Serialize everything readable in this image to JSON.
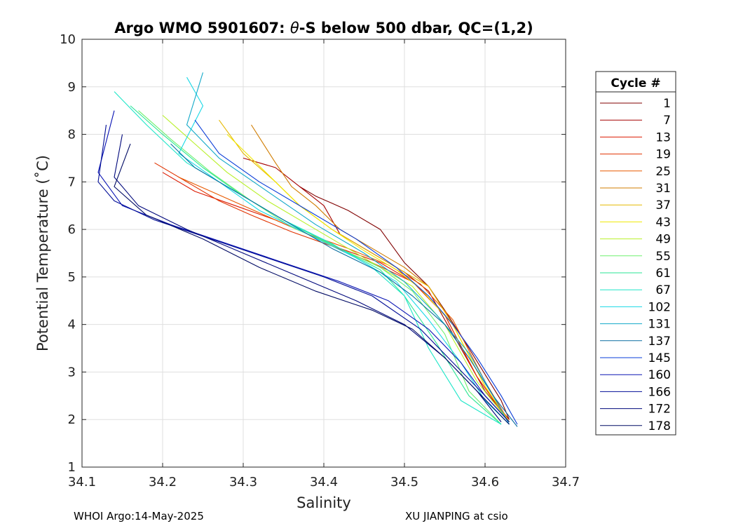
{
  "chart_data": {
    "type": "line",
    "title_parts": [
      "Argo WMO 5901607: ",
      "θ",
      "-S below 500 dbar,  QC=(1,2)"
    ],
    "xlabel": "Salinity",
    "ylabel": "Potential Temperature (˚C)",
    "xlim": [
      34.1,
      34.7
    ],
    "ylim": [
      1,
      10
    ],
    "xticks": [
      "34.1",
      "34.2",
      "34.3",
      "34.4",
      "34.5",
      "34.6",
      "34.7"
    ],
    "yticks": [
      "1",
      "2",
      "3",
      "4",
      "5",
      "6",
      "7",
      "8",
      "9",
      "10"
    ],
    "grid": true,
    "legend": {
      "title": "Cycle #",
      "placement": "right",
      "entries": [
        {
          "label": "1",
          "color": "#800000"
        },
        {
          "label": "7",
          "color": "#a50000"
        },
        {
          "label": "13",
          "color": "#dc1a00"
        },
        {
          "label": "19",
          "color": "#e13300"
        },
        {
          "label": "25",
          "color": "#e85a00"
        },
        {
          "label": "31",
          "color": "#d07c00"
        },
        {
          "label": "37",
          "color": "#e6b800"
        },
        {
          "label": "43",
          "color": "#f0e800"
        },
        {
          "label": "49",
          "color": "#b8f028"
        },
        {
          "label": "55",
          "color": "#6ef06e"
        },
        {
          "label": "61",
          "color": "#28e695"
        },
        {
          "label": "67",
          "color": "#1ee6c8"
        },
        {
          "label": "102",
          "color": "#18d8e6"
        },
        {
          "label": "131",
          "color": "#10a8c8"
        },
        {
          "label": "137",
          "color": "#0a6ea0"
        },
        {
          "label": "145",
          "color": "#0a3cd8"
        },
        {
          "label": "160",
          "color": "#0a14b4"
        },
        {
          "label": "166",
          "color": "#000c96"
        },
        {
          "label": "172",
          "color": "#00087c"
        },
        {
          "label": "178",
          "color": "#000a64"
        }
      ]
    },
    "series": [
      {
        "name": "1",
        "x": [
          34.37,
          34.39,
          34.41,
          34.43,
          34.47,
          34.5,
          34.53,
          34.55,
          34.58,
          34.62,
          34.63
        ],
        "y": [
          6.9,
          6.7,
          6.55,
          6.4,
          6.0,
          5.3,
          4.8,
          4.3,
          3.5,
          2.4,
          2.0
        ]
      },
      {
        "name": "7",
        "x": [
          34.3,
          34.34,
          34.37,
          34.4,
          34.42,
          34.46,
          34.5,
          34.53,
          34.56,
          34.6,
          34.63
        ],
        "y": [
          7.5,
          7.3,
          6.9,
          6.5,
          5.9,
          5.5,
          5.1,
          4.7,
          3.8,
          2.6,
          2.0
        ]
      },
      {
        "name": "13",
        "x": [
          34.2,
          34.24,
          34.29,
          34.34,
          34.38,
          34.42,
          34.47,
          34.51,
          34.55,
          34.59,
          34.63
        ],
        "y": [
          7.2,
          6.8,
          6.5,
          6.2,
          5.9,
          5.6,
          5.3,
          4.9,
          4.2,
          2.9,
          1.95
        ]
      },
      {
        "name": "19",
        "x": [
          34.19,
          34.23,
          34.27,
          34.31,
          34.36,
          34.41,
          34.46,
          34.51,
          34.55,
          34.59,
          34.63
        ],
        "y": [
          7.4,
          7.0,
          6.6,
          6.3,
          5.95,
          5.65,
          5.3,
          4.9,
          4.2,
          2.9,
          1.95
        ]
      },
      {
        "name": "25",
        "x": [
          34.22,
          34.26,
          34.3,
          34.34,
          34.38,
          34.43,
          34.48,
          34.52,
          34.56,
          34.6,
          34.63
        ],
        "y": [
          7.1,
          6.8,
          6.5,
          6.2,
          5.9,
          5.6,
          5.25,
          4.85,
          4.1,
          2.8,
          1.95
        ]
      },
      {
        "name": "31",
        "x": [
          34.31,
          34.34,
          34.36,
          34.39,
          34.42,
          34.46,
          34.5,
          34.53,
          34.56,
          34.6,
          34.63
        ],
        "y": [
          8.2,
          7.4,
          6.9,
          6.5,
          6.0,
          5.6,
          5.2,
          4.8,
          4.0,
          2.7,
          1.95
        ]
      },
      {
        "name": "37",
        "x": [
          34.27,
          34.3,
          34.34,
          34.37,
          34.41,
          34.45,
          34.49,
          34.53,
          34.56,
          34.6,
          34.63
        ],
        "y": [
          8.3,
          7.6,
          7.0,
          6.5,
          6.0,
          5.6,
          5.2,
          4.8,
          4.0,
          2.7,
          1.95
        ]
      },
      {
        "name": "43",
        "x": [
          34.28,
          34.31,
          34.34,
          34.37,
          34.41,
          34.45,
          34.49,
          34.52,
          34.56,
          34.6,
          34.63
        ],
        "y": [
          8.0,
          7.5,
          7.0,
          6.5,
          6.0,
          5.55,
          5.15,
          4.75,
          4.0,
          2.7,
          1.95
        ]
      },
      {
        "name": "49",
        "x": [
          34.2,
          34.24,
          34.28,
          34.33,
          34.38,
          34.43,
          34.47,
          34.51,
          34.55,
          34.59,
          34.63
        ],
        "y": [
          8.4,
          7.8,
          7.2,
          6.6,
          6.1,
          5.6,
          5.2,
          4.8,
          4.0,
          2.8,
          1.95
        ]
      },
      {
        "name": "55",
        "x": [
          34.17,
          34.21,
          34.26,
          34.31,
          34.36,
          34.42,
          34.47,
          34.51,
          34.55,
          34.58,
          34.62
        ],
        "y": [
          8.5,
          7.9,
          7.2,
          6.6,
          6.05,
          5.6,
          5.2,
          4.7,
          3.8,
          2.6,
          1.9
        ]
      },
      {
        "name": "61",
        "x": [
          34.16,
          34.2,
          34.25,
          34.3,
          34.36,
          34.42,
          34.47,
          34.5,
          34.54,
          34.58,
          34.62
        ],
        "y": [
          8.6,
          8.0,
          7.3,
          6.7,
          6.1,
          5.6,
          5.15,
          4.6,
          3.6,
          2.5,
          1.9
        ]
      },
      {
        "name": "67",
        "x": [
          34.14,
          34.18,
          34.23,
          34.29,
          34.35,
          34.41,
          34.46,
          34.5,
          34.53,
          34.57,
          34.62
        ],
        "y": [
          8.9,
          8.2,
          7.4,
          6.8,
          6.2,
          5.7,
          5.2,
          4.6,
          3.5,
          2.4,
          1.9
        ]
      },
      {
        "name": "102",
        "x": [
          34.23,
          34.25,
          34.22,
          34.27,
          34.32,
          34.38,
          34.44,
          34.49,
          34.53,
          34.57,
          34.6,
          34.63
        ],
        "y": [
          9.2,
          8.6,
          7.6,
          7.0,
          6.4,
          5.9,
          5.4,
          4.9,
          4.1,
          3.2,
          2.4,
          1.9
        ]
      },
      {
        "name": "131",
        "x": [
          34.25,
          34.23,
          34.27,
          34.33,
          34.39,
          34.45,
          34.5,
          34.54,
          34.58,
          34.61,
          34.63
        ],
        "y": [
          9.3,
          8.2,
          7.5,
          6.8,
          6.1,
          5.5,
          4.9,
          4.2,
          3.4,
          2.5,
          1.9
        ]
      },
      {
        "name": "137",
        "x": [
          34.21,
          34.24,
          34.29,
          34.35,
          34.41,
          34.47,
          34.51,
          34.55,
          34.58,
          34.61,
          34.64
        ],
        "y": [
          7.8,
          7.3,
          6.8,
          6.2,
          5.6,
          5.1,
          4.6,
          4.0,
          3.3,
          2.5,
          1.85
        ]
      },
      {
        "name": "145",
        "x": [
          34.24,
          34.27,
          34.32,
          34.38,
          34.44,
          34.49,
          34.53,
          34.56,
          34.59,
          34.62,
          34.64
        ],
        "y": [
          8.3,
          7.6,
          7.0,
          6.4,
          5.8,
          5.2,
          4.6,
          4.0,
          3.3,
          2.5,
          1.9
        ]
      },
      {
        "name": "160",
        "x": [
          34.14,
          34.12,
          34.15,
          34.21,
          34.28,
          34.35,
          34.42,
          34.48,
          34.53,
          34.57,
          34.6,
          34.63
        ],
        "y": [
          8.5,
          7.2,
          6.5,
          6.1,
          5.7,
          5.3,
          4.9,
          4.5,
          3.9,
          3.2,
          2.5,
          1.95
        ]
      },
      {
        "name": "166",
        "x": [
          34.13,
          34.12,
          34.14,
          34.19,
          34.26,
          34.33,
          34.4,
          34.46,
          34.52,
          34.56,
          34.6,
          34.63
        ],
        "y": [
          8.2,
          7.0,
          6.6,
          6.2,
          5.8,
          5.4,
          5.0,
          4.6,
          3.9,
          3.2,
          2.5,
          1.95
        ]
      },
      {
        "name": "172",
        "x": [
          34.15,
          34.14,
          34.17,
          34.23,
          34.3,
          34.37,
          34.44,
          34.5,
          34.55,
          34.59,
          34.62
        ],
        "y": [
          8.0,
          7.1,
          6.5,
          6.0,
          5.5,
          5.0,
          4.5,
          4.0,
          3.3,
          2.6,
          1.95
        ]
      },
      {
        "name": "178",
        "x": [
          34.16,
          34.14,
          34.18,
          34.25,
          34.32,
          34.39,
          34.46,
          34.51,
          34.55,
          34.59,
          34.63
        ],
        "y": [
          7.8,
          6.9,
          6.3,
          5.8,
          5.2,
          4.7,
          4.3,
          3.9,
          3.3,
          2.6,
          1.9
        ]
      }
    ]
  },
  "footer": {
    "left": "WHOI Argo:14-May-2025",
    "right": "XU JIANPING at csio"
  }
}
